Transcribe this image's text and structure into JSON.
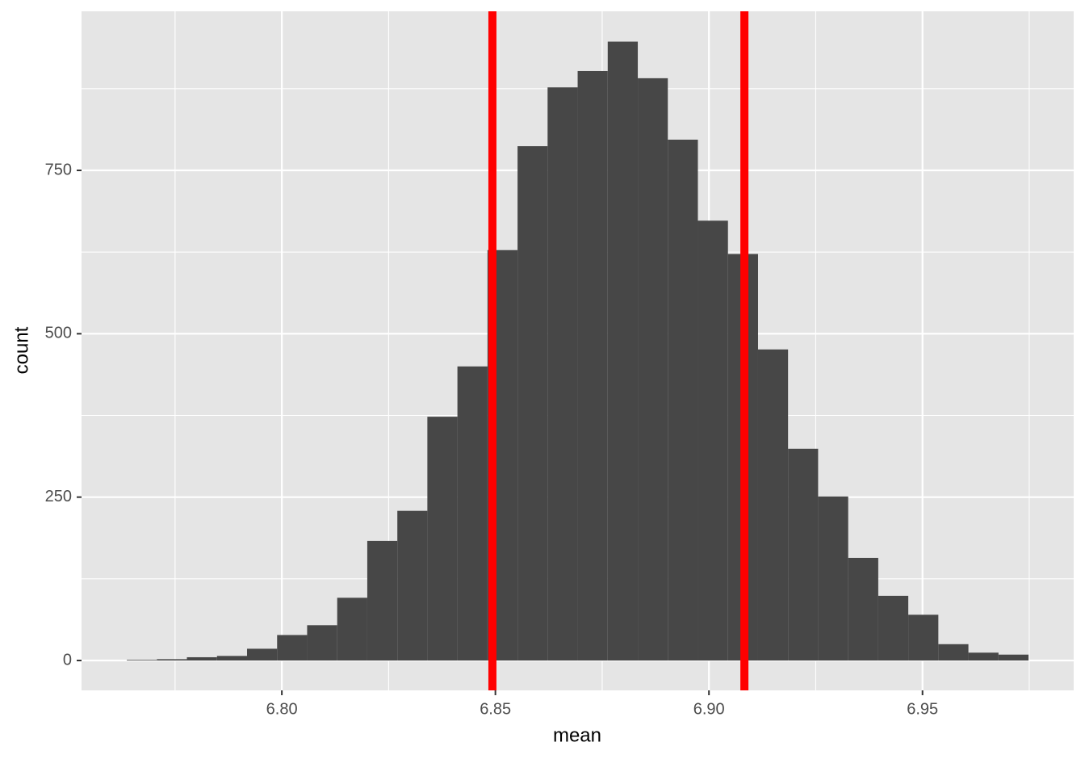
{
  "chart_data": {
    "type": "histogram",
    "x_label": "mean",
    "y_label": "count",
    "bins": [
      6.7637,
      6.77074,
      6.77777,
      6.78481,
      6.79185,
      6.79889,
      6.80592,
      6.81296,
      6.82,
      6.82704,
      6.83407,
      6.84111,
      6.84815,
      6.85519,
      6.86222,
      6.86926,
      6.8763,
      6.88334,
      6.89037,
      6.89741,
      6.90445,
      6.91149,
      6.91852,
      6.92556,
      6.9326,
      6.93964,
      6.94667,
      6.95371,
      6.96075,
      6.96779,
      6.97482
    ],
    "counts": [
      1,
      2,
      5,
      7,
      18,
      39,
      54,
      96,
      183,
      229,
      373,
      450,
      628,
      787,
      877,
      902,
      947,
      891,
      797,
      673,
      622,
      476,
      324,
      251,
      157,
      99,
      70,
      25,
      12,
      9
    ],
    "color": "#474747",
    "vlines": [
      6.8493,
      6.9083
    ],
    "vline_color": "#ff0000",
    "xlim": [
      6.7531,
      6.9854
    ],
    "xticks": [
      {
        "value": 6.8,
        "label": "6.80"
      },
      6.85,
      {
        "value": 6.9,
        "label": "6.90"
      },
      6.95
    ],
    "ylim": [
      -45.7,
      993.4
    ],
    "yticks": [
      0,
      250,
      500,
      750
    ],
    "grid": true
  }
}
